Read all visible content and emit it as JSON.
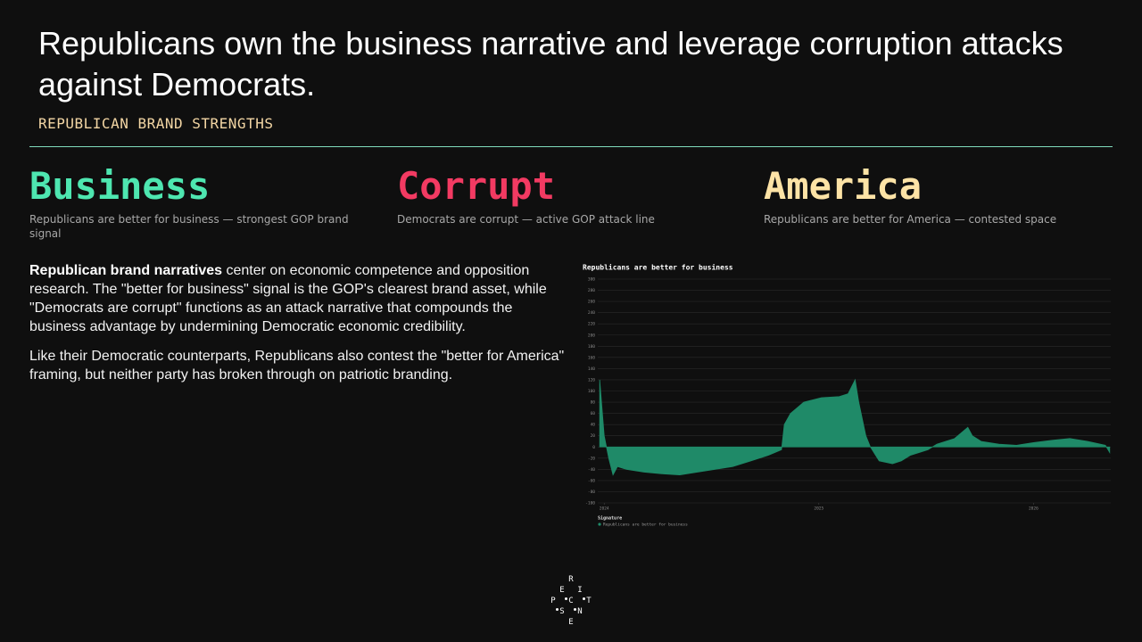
{
  "header": {
    "title": "Republicans own the business narrative and leverage corruption attacks against Democrats.",
    "subtitle": "REPUBLICAN BRAND STRENGTHS"
  },
  "columns": [
    {
      "heading": "Business",
      "color": "#4ee6b0",
      "description": "Republicans are better for business — strongest GOP brand signal"
    },
    {
      "heading": "Corrupt",
      "color": "#f23a62",
      "description": "Democrats are corrupt — active GOP attack line"
    },
    {
      "heading": "America",
      "color": "#fde3a6",
      "description": "Republicans are better for America — contested space"
    }
  ],
  "body": {
    "paragraphs": [
      {
        "bold": "Republican brand narratives",
        "text": " center on economic competence and opposition research. The \"better for business\" signal is the GOP's clearest brand asset, while \"Democrats are corrupt\" functions as an attack narrative that compounds the business advantage by undermining Democratic economic credibility."
      },
      {
        "text": "Like their Democratic counterparts, Republicans also contest the \"better for America\" framing, but neither party has broken through on patriotic branding."
      }
    ]
  },
  "chart_data": {
    "type": "area",
    "title": "Republicans are better for business",
    "legend_title": "Signature",
    "x": [
      2023.979,
      2024.0,
      2024.021,
      2024.041,
      2024.062,
      2024.103,
      2024.186,
      2024.269,
      2024.351,
      2024.434,
      2024.517,
      2024.599,
      2024.682,
      2024.764,
      2024.826,
      2024.839,
      2024.868,
      2024.93,
      2025.012,
      2025.095,
      2025.136,
      2025.169,
      2025.186,
      2025.219,
      2025.24,
      2025.281,
      2025.343,
      2025.384,
      2025.426,
      2025.508,
      2025.55,
      2025.632,
      2025.694,
      2025.715,
      2025.756,
      2025.839,
      2025.921,
      2026.004,
      2026.087,
      2026.169,
      2026.252,
      2026.335,
      2026.355
    ],
    "series": [
      {
        "name": "Republicans are better for business",
        "color": "#1f8a68",
        "values": [
          120,
          20,
          -20,
          -50,
          -35,
          -40,
          -45,
          -48,
          -50,
          -45,
          -40,
          -35,
          -25,
          -15,
          -5,
          40,
          60,
          80,
          88,
          90,
          95,
          120,
          80,
          20,
          0,
          -25,
          -30,
          -25,
          -15,
          -5,
          5,
          15,
          35,
          20,
          10,
          5,
          3,
          8,
          12,
          15,
          10,
          3,
          -10
        ]
      }
    ],
    "xlim": [
      2023.97,
      2026.36
    ],
    "xticks": [
      2024,
      2025,
      2026
    ],
    "ylim": [
      -100,
      300
    ],
    "yticks": [
      -100,
      -80,
      -60,
      -40,
      -20,
      0,
      20,
      40,
      60,
      80,
      100,
      120,
      140,
      160,
      180,
      200,
      220,
      240,
      260,
      280,
      300
    ],
    "grid": true
  },
  "logo": [
    "R",
    "E",
    "I",
    "P",
    "C",
    "T",
    "S",
    "N",
    "E"
  ]
}
